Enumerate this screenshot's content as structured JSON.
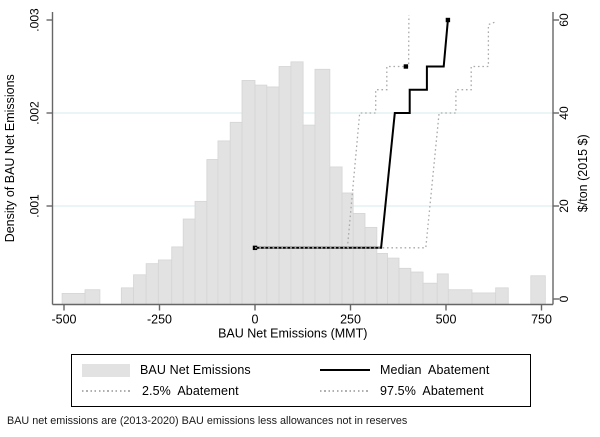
{
  "figure": {
    "x_title": "BAU Net Emissions (MMT)",
    "y_left_title": "Density of BAU Net Emissions",
    "y_right_title": "$/ton (2015 $)",
    "footnote": "BAU net emissions are (2013-2020) BAU emissions less allowances not in reserves"
  },
  "legend": {
    "items": [
      {
        "key": "histogram-swatch",
        "label": "BAU Net Emissions"
      },
      {
        "key": "solid-line",
        "label": "Median  Abatement"
      },
      {
        "key": "dotted-line",
        "label": "2.5%  Abatement"
      },
      {
        "key": "dotted-line",
        "label": "97.5%  Abatement"
      }
    ]
  },
  "colors": {
    "bar_fill": "#e2e2e2",
    "bar_stroke": "#d5d5d5",
    "gridline": "#e0efef",
    "axis": "#666666",
    "median_line": "#000000",
    "dotted_line": "#aaaaaa",
    "text": "#000000"
  },
  "chart_data": {
    "type": "histogram+step-lines",
    "title": "",
    "x_axis": {
      "label": "BAU Net Emissions (MMT)",
      "tick_values": [
        -500,
        -250,
        0,
        250,
        500,
        750
      ],
      "tick_labels": [
        "-500",
        "-250",
        "0",
        "250",
        "500",
        "750"
      ],
      "range": [
        -532,
        780
      ]
    },
    "y_left_axis": {
      "label": "Density of BAU Net Emissions",
      "tick_values": [
        0.001,
        0.002,
        0.003
      ],
      "tick_labels": [
        ".001",
        ".002",
        ".003"
      ],
      "range": [
        0,
        0.00315
      ]
    },
    "y_right_axis": {
      "label": "$/ton (2015 $)",
      "tick_values": [
        0,
        20,
        40,
        60
      ],
      "tick_labels": [
        "0",
        "20",
        "40",
        "60"
      ],
      "range": [
        0,
        63
      ],
      "gridline_values": [
        20,
        40
      ]
    },
    "histogram": {
      "name": "BAU Net Emissions",
      "x_units": "MMT",
      "y_units": "density",
      "bars": [
        [
          -505,
          -445,
          6e-05
        ],
        [
          -445,
          -406,
          0.0001
        ],
        [
          -350,
          -318,
          0.00012
        ],
        [
          -318,
          -285,
          0.00026
        ],
        [
          -285,
          -253,
          0.00038
        ],
        [
          -253,
          -218,
          0.00042
        ],
        [
          -218,
          -188,
          0.00056
        ],
        [
          -188,
          -157,
          0.00086
        ],
        [
          -157,
          -126,
          0.00105
        ],
        [
          -126,
          -97,
          0.0015
        ],
        [
          -97,
          -65,
          0.0017
        ],
        [
          -65,
          -34,
          0.0019
        ],
        [
          -34,
          0,
          0.00235
        ],
        [
          0,
          31,
          0.0023
        ],
        [
          31,
          63,
          0.00228
        ],
        [
          63,
          94,
          0.0025
        ],
        [
          94,
          126,
          0.00255
        ],
        [
          126,
          157,
          0.00187
        ],
        [
          157,
          196,
          0.00247
        ],
        [
          196,
          228,
          0.00142
        ],
        [
          228,
          257,
          0.00114
        ],
        [
          257,
          288,
          0.00092
        ],
        [
          288,
          319,
          0.00077
        ],
        [
          319,
          347,
          0.00049
        ],
        [
          347,
          377,
          0.00044
        ],
        [
          377,
          408,
          0.00033
        ],
        [
          408,
          440,
          0.00029
        ],
        [
          440,
          477,
          0.00017
        ],
        [
          477,
          506,
          0.00027
        ],
        [
          506,
          568,
          0.0001
        ],
        [
          568,
          630,
          6.5e-05
        ],
        [
          630,
          663,
          0.00012
        ],
        [
          722,
          760,
          0.00025
        ]
      ]
    },
    "series": [
      {
        "name": "Median Abatement",
        "style": "solid",
        "axis": "right",
        "points": [
          [
            0,
            11
          ],
          [
            330,
            11
          ],
          [
            366,
            40
          ],
          [
            405,
            40
          ],
          [
            405,
            45
          ],
          [
            450,
            45
          ],
          [
            450,
            50
          ],
          [
            494,
            50
          ],
          [
            505,
            60
          ]
        ],
        "markers": [
          [
            0,
            11
          ],
          [
            505,
            60
          ]
        ]
      },
      {
        "name": "2.5% Abatement",
        "style": "dotted",
        "axis": "right",
        "points": [
          [
            0,
            11
          ],
          [
            242,
            11
          ],
          [
            274,
            40
          ],
          [
            316,
            40
          ],
          [
            316,
            45
          ],
          [
            345,
            45
          ],
          [
            345,
            50
          ],
          [
            400,
            50
          ],
          [
            402,
            50
          ],
          [
            403,
            61
          ]
        ],
        "markers": [
          [
            395,
            50
          ]
        ]
      },
      {
        "name": "97.5% Abatement",
        "style": "dotted",
        "axis": "right",
        "points": [
          [
            0,
            11
          ],
          [
            447,
            11
          ],
          [
            482,
            40
          ],
          [
            526,
            40
          ],
          [
            526,
            45
          ],
          [
            566,
            45
          ],
          [
            566,
            50
          ],
          [
            611,
            50
          ],
          [
            611,
            59
          ],
          [
            627,
            59.5
          ]
        ],
        "markers": []
      }
    ]
  }
}
